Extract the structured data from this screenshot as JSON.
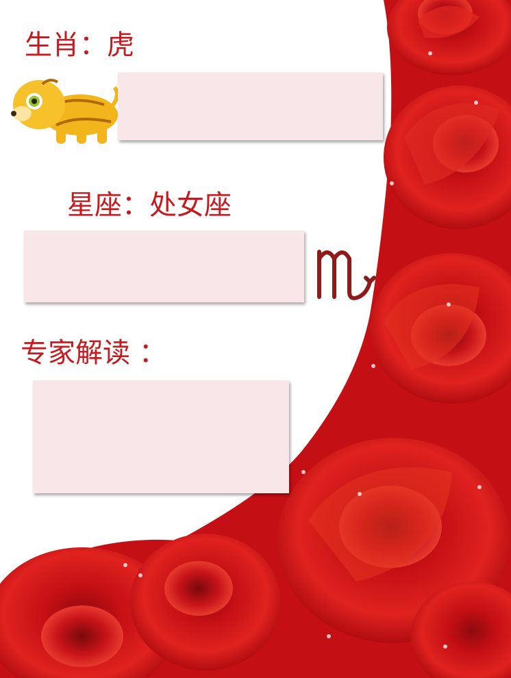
{
  "zodiac_label": "生肖：虎",
  "sign_label": "星座：处女座",
  "expert_label": "专家解读 ：",
  "icons": {
    "zodiac_animal": "tiger-icon",
    "star_sign": "virgo-symbol-icon",
    "decoration": "red-roses"
  },
  "colors": {
    "label_text": "#c8191f",
    "text_box": "#f9e6e8",
    "rose_red": "#d31515",
    "rose_dark": "#8e0a0d"
  }
}
